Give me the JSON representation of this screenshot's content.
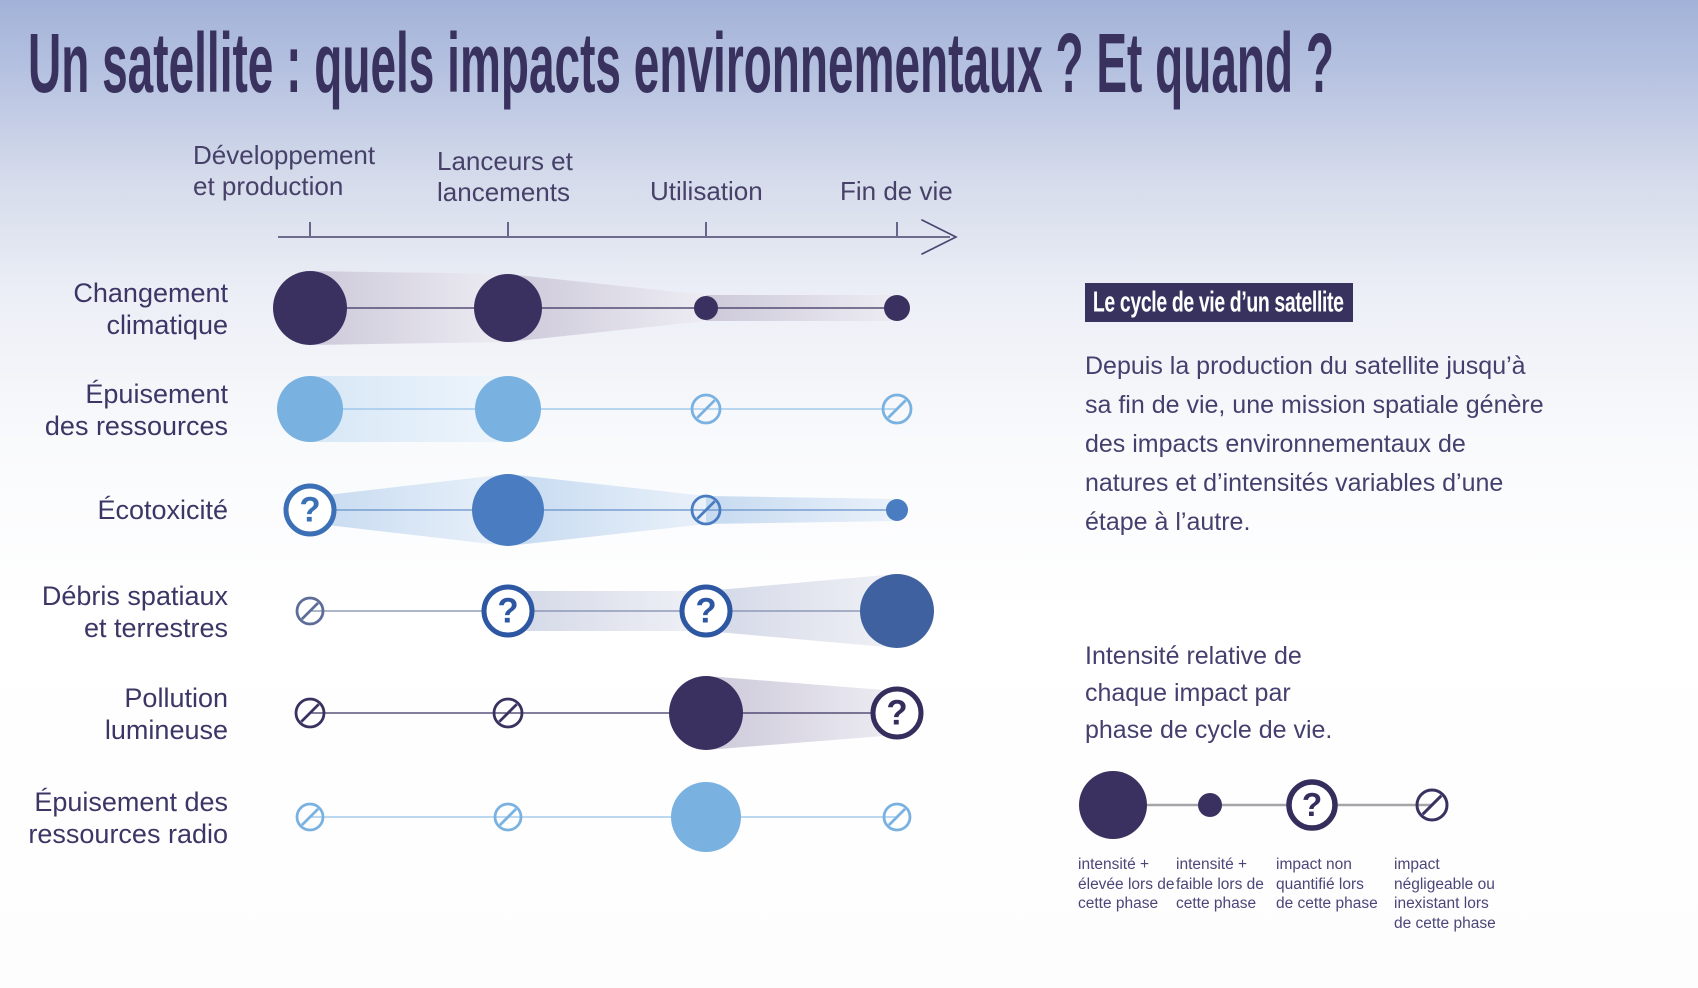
{
  "title": "Un satellite : quels impacts environnementaux ? Et quand ?",
  "colors": {
    "title": "#39325f",
    "axis": "#4a4470",
    "header_text": "#474169",
    "row_label_text": "#3c3666",
    "paragraph_text": "#453f6e",
    "badge_bg": "#38325f",
    "badge_text": "#ffffff",
    "legend_line": "#a5a5a9",
    "symbol": {
      "navy": "#3a3160",
      "lightblue": "#79b1e0",
      "blue": "#4a7cc1",
      "indigo": "#40619f"
    },
    "ring": {
      "navy": "#352e5c",
      "lightblue": "#75aede",
      "blue": "#3b70b6",
      "indigo": "#2d57a2"
    },
    "line": {
      "navy": "#3a3160",
      "lightblue": "#94c2e9",
      "blue": "#6590cb",
      "indigo": "#7e8bad"
    },
    "bands": {
      "navy": [
        "#cdc9da",
        "#edecf2"
      ],
      "lightblue": [
        "#d7e7f6",
        "#eef5fc"
      ],
      "blue": [
        "#c6daf0",
        "#e9f1fa"
      ],
      "indigo": [
        "#d3d8e7",
        "#f0f1f6"
      ]
    }
  },
  "axis": {
    "phases": [
      "Développement\net production",
      "Lanceurs et\nlancements",
      "Utilisation",
      "Fin de vie"
    ]
  },
  "matrix": {
    "rows": [
      {
        "label": "Changement\nclimatique",
        "color": "navy",
        "cells": [
          {
            "type": "high",
            "r": 37
          },
          {
            "type": "high",
            "r": 34
          },
          {
            "type": "low",
            "r": 12
          },
          {
            "type": "low",
            "r": 13
          }
        ],
        "bands": [
          [
            0,
            1,
            37,
            34
          ],
          [
            1,
            2,
            34,
            13
          ],
          [
            2,
            3,
            13,
            13
          ]
        ]
      },
      {
        "label": "Épuisement\ndes ressources",
        "color": "lightblue",
        "cells": [
          {
            "type": "high",
            "r": 33
          },
          {
            "type": "high",
            "r": 33
          },
          {
            "type": "none",
            "r": 14
          },
          {
            "type": "none",
            "r": 14
          }
        ],
        "bands": [
          [
            0,
            1,
            33,
            33
          ]
        ]
      },
      {
        "label": "Écotoxicité",
        "color": "blue",
        "cells": [
          {
            "type": "unknown",
            "r": 24
          },
          {
            "type": "high",
            "r": 36
          },
          {
            "type": "none",
            "r": 14
          },
          {
            "type": "low",
            "r": 11
          }
        ],
        "bands": [
          [
            0,
            1,
            13,
            36
          ],
          [
            1,
            2,
            36,
            14
          ],
          [
            2,
            3,
            14,
            11
          ]
        ]
      },
      {
        "label": "Débris spatiaux\net terrestres",
        "color": "indigo",
        "cells": [
          {
            "type": "none",
            "r": 13,
            "color": "#5d6c98"
          },
          {
            "type": "unknown",
            "r": 24
          },
          {
            "type": "unknown",
            "r": 24
          },
          {
            "type": "high",
            "r": 37
          }
        ],
        "bands": [
          [
            1,
            2,
            20,
            20
          ],
          [
            2,
            3,
            20,
            37
          ]
        ]
      },
      {
        "label": "Pollution\nlumineuse",
        "color": "navy",
        "cells": [
          {
            "type": "none",
            "r": 14
          },
          {
            "type": "none",
            "r": 14
          },
          {
            "type": "high",
            "r": 37
          },
          {
            "type": "unknown",
            "r": 24
          }
        ],
        "bands": [
          [
            2,
            3,
            37,
            22
          ]
        ]
      },
      {
        "label": "Épuisement des\nressources radio",
        "color": "lightblue",
        "cells": [
          {
            "type": "none",
            "r": 13
          },
          {
            "type": "none",
            "r": 13
          },
          {
            "type": "high",
            "r": 35
          },
          {
            "type": "none",
            "r": 13
          }
        ],
        "bands": []
      }
    ]
  },
  "side": {
    "badge": "Le cycle de vie d’un satellite",
    "paragraph": "Depuis la production du satellite jusqu’à\nsa fin de vie, une mission spatiale génère\ndes impacts environnementaux de\nnatures et d’intensités variables d’une\nétape à l’autre.",
    "legend_intro": "Intensité relative de\nchaque impact par\nphase de cycle de vie.",
    "legend": [
      {
        "type": "high",
        "r": 34,
        "label": "intensité +\nélevée lors de\ncette phase"
      },
      {
        "type": "low",
        "r": 12,
        "label": "intensité +\nfaible lors de\ncette phase"
      },
      {
        "type": "unknown",
        "r": 23,
        "label": "impact non\nquantifié lors\nde cette phase"
      },
      {
        "type": "none",
        "r": 15,
        "label": "impact\nnégligeable ou\ninexistant lors\nde cette phase"
      }
    ]
  }
}
